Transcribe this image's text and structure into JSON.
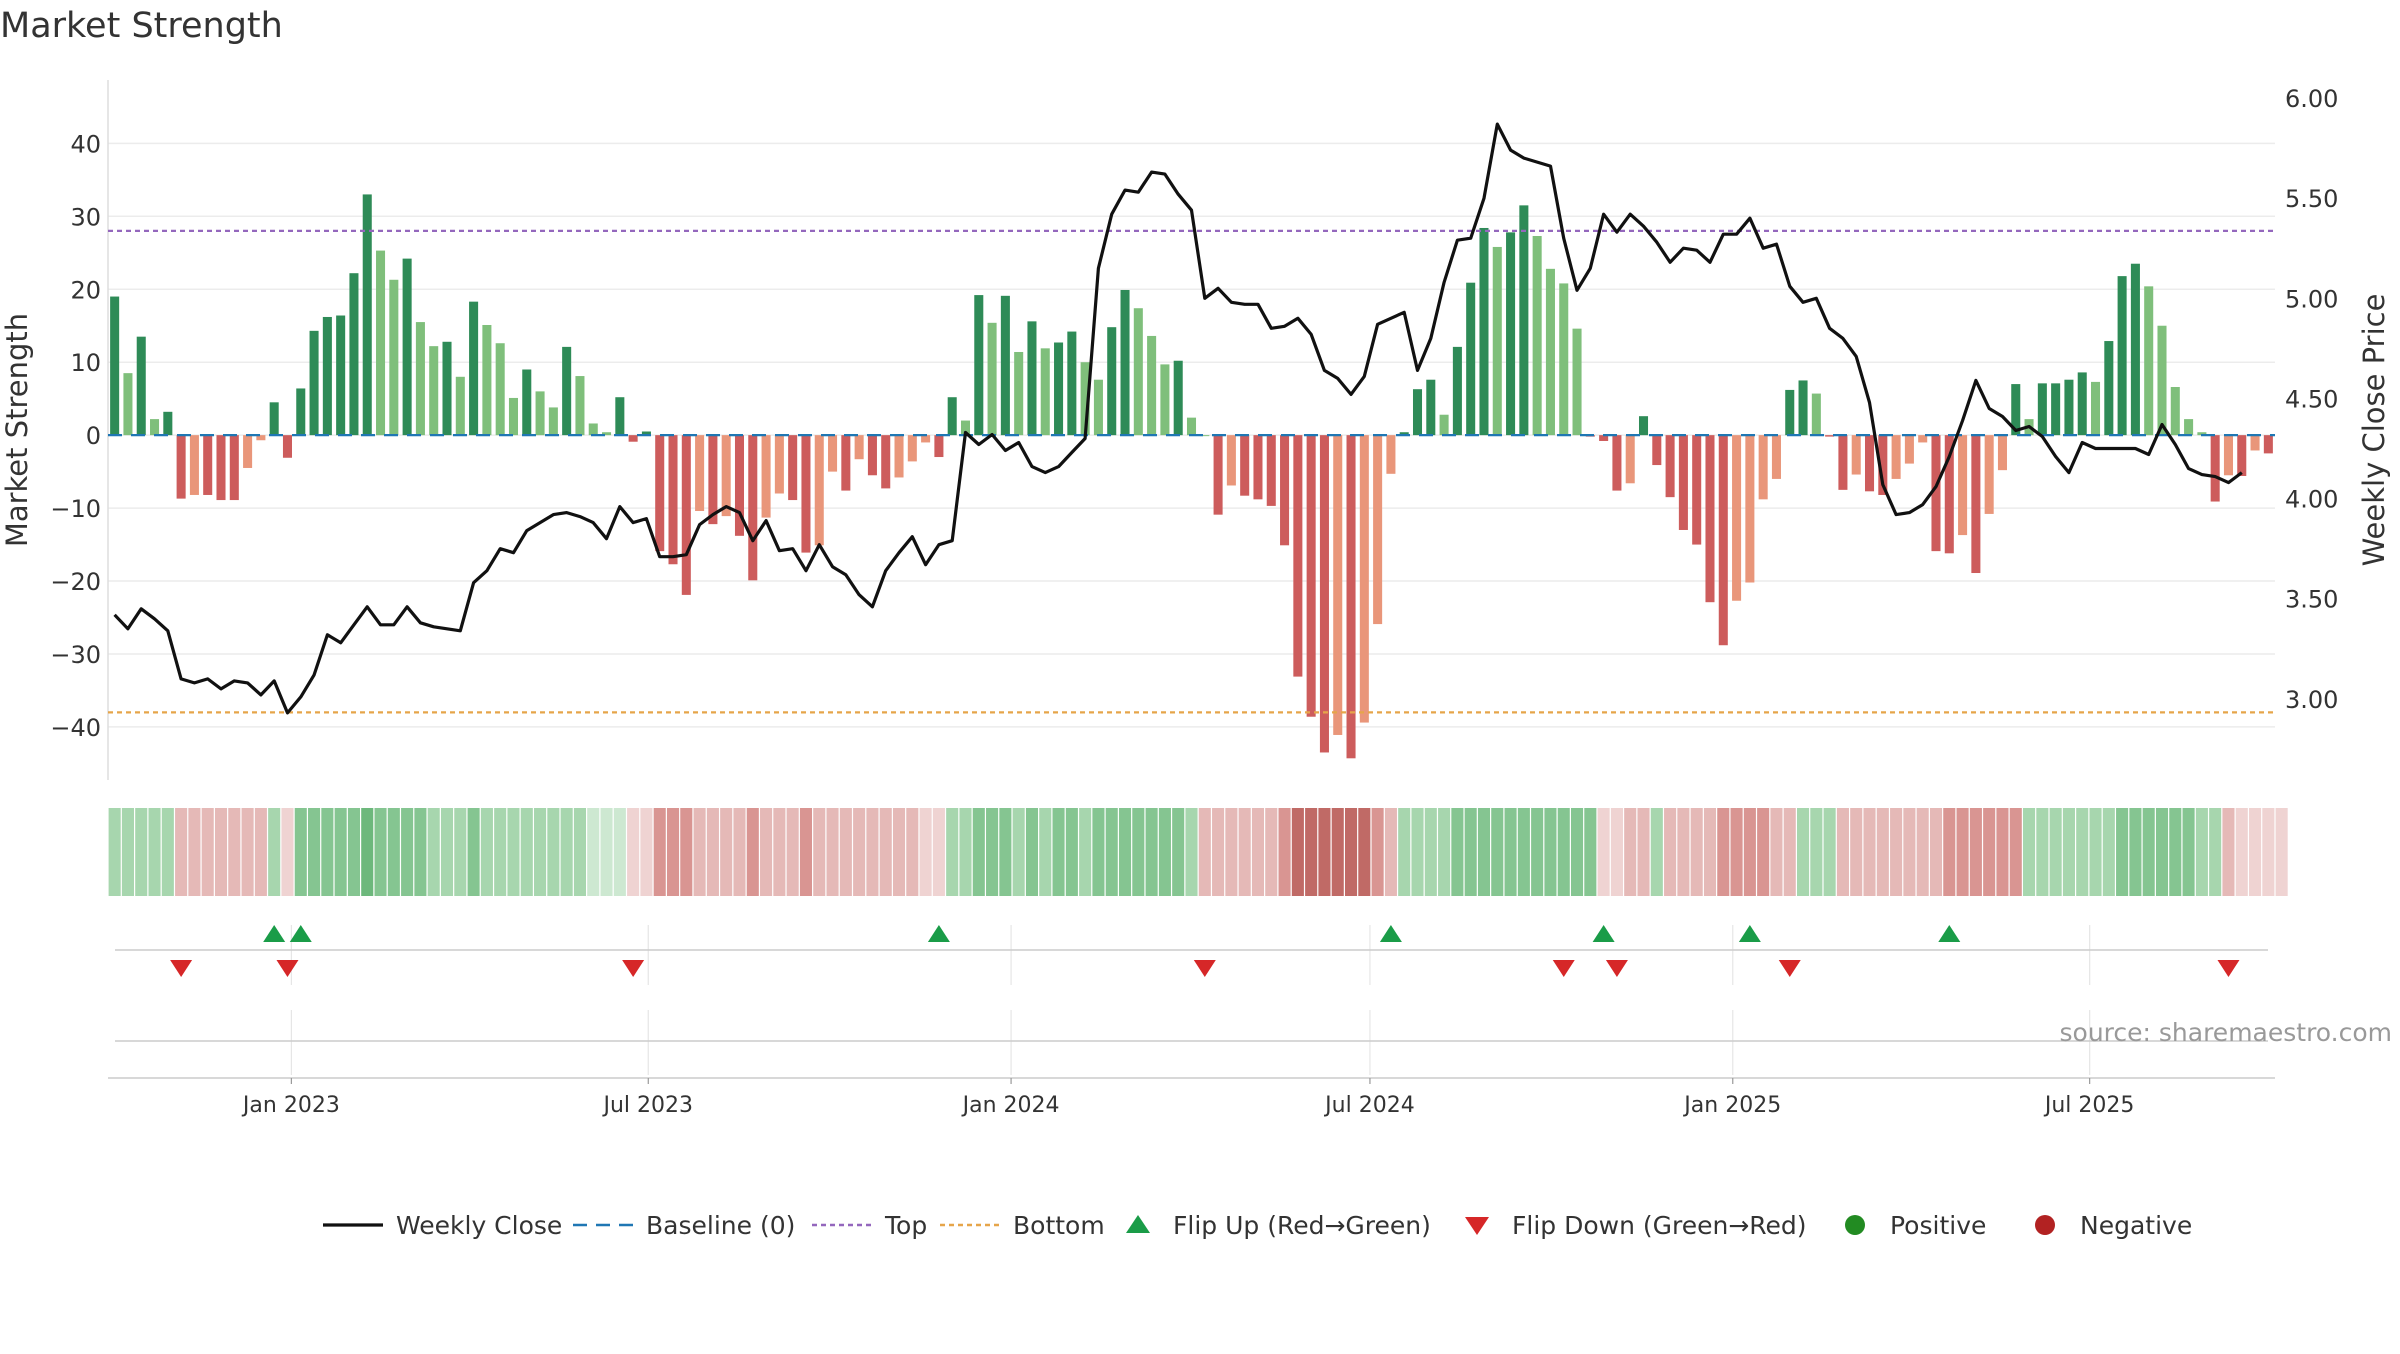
{
  "chart_data": {
    "type": "bar",
    "title": "Market Strength",
    "ylabel": "Market Strength",
    "y2label": "Weekly Close Price",
    "ylim": [
      -47,
      48
    ],
    "y2lim": [
      2.62,
      6.05
    ],
    "yticks": [
      40,
      30,
      20,
      10,
      0,
      -10,
      -20,
      -30,
      -40
    ],
    "y2ticks": [
      "6.00",
      "5.50",
      "5.00",
      "4.50",
      "4.00",
      "3.50",
      "3.00"
    ],
    "y2tick_values": [
      6.0,
      5.5,
      5.0,
      4.5,
      4.0,
      3.5,
      3.0
    ],
    "x_start": "2022-09-30",
    "x_end": "2025-10-03",
    "xticks": [
      {
        "label": "Jan 2023",
        "date": "2023-01-01"
      },
      {
        "label": "Jul 2023",
        "date": "2023-07-01"
      },
      {
        "label": "Jan 2024",
        "date": "2024-01-01"
      },
      {
        "label": "Jul 2024",
        "date": "2024-07-01"
      },
      {
        "label": "Jan 2025",
        "date": "2025-01-01"
      },
      {
        "label": "Jul 2025",
        "date": "2025-07-01"
      }
    ],
    "top_line": 28,
    "bottom_line": -38,
    "baseline": 0,
    "grid": true,
    "legend_position": "bottom",
    "strength": [
      19,
      8.5,
      13.5,
      2.2,
      3.2,
      -8.7,
      -8.2,
      -8.2,
      -8.9,
      -8.9,
      -4.5,
      -0.7,
      4.5,
      -3.1,
      6.4,
      14.3,
      16.2,
      16.4,
      22.2,
      33,
      25.3,
      21.3,
      24.2,
      15.5,
      12.2,
      12.8,
      8,
      18.3,
      15.1,
      12.6,
      5.1,
      9,
      6,
      3.8,
      12.1,
      8.1,
      1.6,
      0.4,
      5.2,
      -0.9,
      0.5,
      -15.9,
      -17.7,
      -21.9,
      -10.4,
      -12.2,
      -11.1,
      -13.8,
      -19.9,
      -11.3,
      -8,
      -8.9,
      -16.1,
      -15.1,
      -5,
      -7.6,
      -3.3,
      -5.5,
      -7.3,
      -5.8,
      -3.6,
      -1,
      -3,
      5.2,
      2,
      19.2,
      15.4,
      19.1,
      11.4,
      15.6,
      11.9,
      12.7,
      14.2,
      10,
      7.6,
      14.8,
      19.9,
      17.4,
      13.6,
      9.7,
      10.2,
      2.4,
      0,
      -10.9,
      -6.9,
      -8.3,
      -8.8,
      -9.7,
      -15.1,
      -33.1,
      -38.6,
      -43.5,
      -41.1,
      -44.3,
      -39.4,
      -25.9,
      -5.3,
      0.4,
      6.3,
      7.6,
      2.8,
      12.1,
      20.9,
      28.4,
      25.8,
      27.8,
      31.5,
      27.3,
      22.8,
      20.8,
      14.6,
      -0.2,
      -0.8,
      -7.6,
      -6.6,
      2.6,
      -4.1,
      -8.5,
      -13,
      -15,
      -22.9,
      -28.8,
      -22.7,
      -20.2,
      -8.8,
      -6,
      6.2,
      7.5,
      5.7,
      -0.2,
      -7.5,
      -5.4,
      -7.7,
      -8.2,
      -6,
      -3.9,
      -1,
      -15.9,
      -16.2,
      -13.7,
      -18.9,
      -10.8,
      -4.8,
      7,
      2.2,
      7.1,
      7.1,
      7.6,
      8.6,
      7.3,
      12.9,
      21.8,
      23.5,
      20.4,
      15,
      6.6,
      2.2,
      0.4,
      -9.1,
      -5.5,
      -5.6,
      -2.1,
      -2.5
    ],
    "close": [
      3.42,
      3.35,
      3.45,
      3.4,
      3.34,
      3.1,
      3.08,
      3.1,
      3.05,
      3.09,
      3.08,
      3.02,
      3.09,
      2.93,
      3.01,
      3.12,
      3.32,
      3.28,
      3.37,
      3.46,
      3.37,
      3.37,
      3.46,
      3.38,
      3.36,
      3.35,
      3.34,
      3.58,
      3.64,
      3.75,
      3.73,
      3.84,
      3.88,
      3.92,
      3.93,
      3.91,
      3.88,
      3.8,
      3.96,
      3.88,
      3.9,
      3.71,
      3.71,
      3.72,
      3.87,
      3.92,
      3.96,
      3.93,
      3.79,
      3.89,
      3.74,
      3.75,
      3.64,
      3.77,
      3.66,
      3.62,
      3.52,
      3.46,
      3.64,
      3.73,
      3.81,
      3.67,
      3.77,
      3.79,
      4.33,
      4.27,
      4.32,
      4.24,
      4.28,
      4.16,
      4.13,
      4.16,
      4.23,
      4.3,
      5.15,
      5.42,
      5.54,
      5.53,
      5.63,
      5.62,
      5.52,
      5.44,
      5.0,
      5.05,
      4.98,
      4.97,
      4.97,
      4.85,
      4.86,
      4.9,
      4.82,
      4.64,
      4.6,
      4.52,
      4.61,
      4.87,
      4.9,
      4.93,
      4.64,
      4.8,
      5.08,
      5.29,
      5.3,
      5.5,
      5.87,
      5.74,
      5.7,
      5.68,
      5.66,
      5.3,
      5.04,
      5.15,
      5.42,
      5.33,
      5.42,
      5.36,
      5.28,
      5.18,
      5.25,
      5.24,
      5.18,
      5.32,
      5.32,
      5.4,
      5.25,
      5.27,
      5.06,
      4.98,
      5.0,
      4.85,
      4.8,
      4.71,
      4.48,
      4.07,
      3.92,
      3.93,
      3.97,
      4.06,
      4.21,
      4.39,
      4.59,
      4.45,
      4.41,
      4.34,
      4.36,
      4.31,
      4.21,
      4.13,
      4.28,
      4.25,
      4.25,
      4.25,
      4.25,
      4.22,
      4.37,
      4.27,
      4.15,
      4.12,
      4.11,
      4.08,
      4.13
    ]
  },
  "title": "Market Strength",
  "source": "source: sharemaestro.com",
  "tiles_shade": [
    2,
    2,
    2,
    2,
    2,
    -2,
    -2,
    -2,
    -2,
    -2,
    -2,
    -2,
    2,
    -1,
    3,
    3,
    3,
    3,
    3,
    4,
    3,
    3,
    3,
    3,
    2,
    2,
    2,
    3,
    2,
    2,
    2,
    2,
    2,
    2,
    2,
    2,
    1,
    1,
    1,
    -1,
    -1,
    -3,
    -3,
    -3,
    -2,
    -2,
    -2,
    -2,
    -3,
    -2,
    -2,
    -2,
    -3,
    -2,
    -2,
    -2,
    -2,
    -2,
    -2,
    -2,
    -2,
    -1,
    -1,
    2,
    2,
    3,
    3,
    3,
    2,
    3,
    2,
    3,
    3,
    2,
    3,
    3,
    3,
    3,
    3,
    3,
    3,
    2,
    -2,
    -2,
    -2,
    -2,
    -2,
    -2,
    -3,
    -4,
    -4,
    -4,
    -4,
    -4,
    -4,
    -3,
    -2,
    2,
    2,
    2,
    2,
    3,
    3,
    3,
    3,
    3,
    3,
    3,
    3,
    3,
    3,
    3,
    -1,
    -1,
    -2,
    -2,
    2,
    -2,
    -2,
    -2,
    -2,
    -3,
    -3,
    -3,
    -3,
    -2,
    -2,
    2,
    2,
    2,
    -2,
    -2,
    -2,
    -2,
    -2,
    -2,
    -2,
    -2,
    -3,
    -3,
    -3,
    -3,
    -3,
    -3,
    2,
    2,
    2,
    2,
    2,
    2,
    2,
    3,
    3,
    3,
    3,
    3,
    3,
    2,
    2,
    -2,
    -1,
    -1,
    -1,
    -1
  ],
  "flip_up_weeks": [
    12,
    14,
    62,
    96,
    112,
    123,
    138
  ],
  "flip_down_weeks": [
    5,
    13,
    39,
    82,
    109,
    113,
    126,
    159
  ],
  "colors": {
    "pos_strong": "#2e8b57",
    "pos_light": "#7fbf7b",
    "neg_strong": "#cd5c5c",
    "neg_light": "#e9967a",
    "close_line": "#111111",
    "baseline": "#1f77b4",
    "top": "#9467bd",
    "bottom": "#e6a54a",
    "flip_up": "#1a9c48",
    "flip_down": "#d62728",
    "positive_dot": "#228b22",
    "negative_dot": "#b22222"
  },
  "legend": [
    {
      "label": "Weekly Close",
      "kind": "line",
      "icon": "solid-line"
    },
    {
      "label": "Baseline (0)",
      "kind": "baseline",
      "icon": "dashed-line"
    },
    {
      "label": "Top",
      "kind": "top",
      "icon": "dotted-line"
    },
    {
      "label": "Bottom",
      "kind": "bottom",
      "icon": "dotted-line"
    },
    {
      "label": "Flip Up (Red→Green)",
      "kind": "up",
      "icon": "triangle-up"
    },
    {
      "label": "Flip Down (Green→Red)",
      "kind": "down",
      "icon": "triangle-down"
    },
    {
      "label": "Positive",
      "kind": "pos",
      "icon": "circle"
    },
    {
      "label": "Negative",
      "kind": "neg",
      "icon": "circle"
    }
  ]
}
